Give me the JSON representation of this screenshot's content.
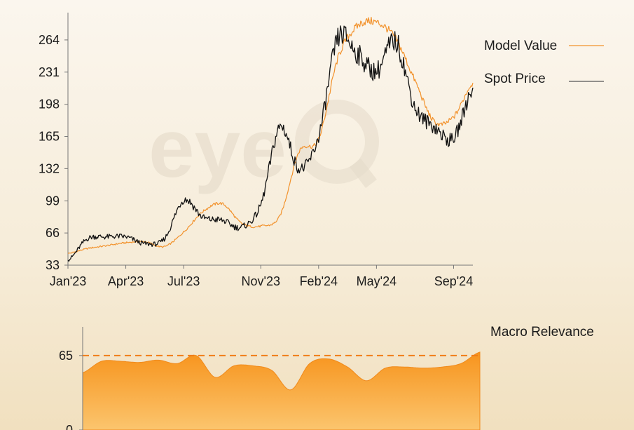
{
  "watermark": "eye",
  "colors": {
    "model": "#f2922c",
    "spot": "#111111",
    "macro_fill_top": "#f7941d",
    "macro_fill_bottom": "#fbc56e",
    "macro_ref": "#f07d18"
  },
  "chart_data": [
    {
      "type": "line",
      "title": "",
      "xlabel": "",
      "ylabel": "",
      "x_ticks": [
        "Jan'23",
        "Apr'23",
        "Jul'23",
        "Nov'23",
        "Feb'24",
        "May'24",
        "Sep'24"
      ],
      "y_ticks": [
        33,
        66,
        99,
        132,
        165,
        198,
        231,
        264
      ],
      "ylim": [
        33,
        292
      ],
      "xlim": [
        "2023-01",
        "2024-10"
      ],
      "legend_placement": "right",
      "series": [
        {
          "name": "Model Value",
          "color": "#f2922c",
          "x": [
            "2023-01",
            "2023-02",
            "2023-03",
            "2023-04",
            "2023-05",
            "2023-06",
            "2023-07",
            "2023-08",
            "2023-09",
            "2023-10",
            "2023-11",
            "2023-12",
            "2024-01",
            "2024-02",
            "2024-03",
            "2024-04",
            "2024-05",
            "2024-06",
            "2024-07",
            "2024-08",
            "2024-09",
            "2024-10"
          ],
          "values": [
            45,
            50,
            53,
            56,
            57,
            52,
            67,
            88,
            96,
            76,
            73,
            84,
            150,
            162,
            245,
            278,
            282,
            265,
            222,
            180,
            185,
            220
          ]
        },
        {
          "name": "Spot Price",
          "color": "#111111",
          "x": [
            "2023-01",
            "2023-02",
            "2023-03",
            "2023-04",
            "2023-05",
            "2023-06",
            "2023-07",
            "2023-08",
            "2023-09",
            "2023-10",
            "2023-11",
            "2023-12",
            "2024-01",
            "2024-02",
            "2024-03",
            "2024-04",
            "2024-05",
            "2024-06",
            "2024-07",
            "2024-08",
            "2024-09",
            "2024-10"
          ],
          "values": [
            38,
            60,
            62,
            62,
            55,
            60,
            100,
            82,
            79,
            72,
            95,
            175,
            132,
            165,
            265,
            250,
            232,
            262,
            195,
            175,
            163,
            215
          ]
        }
      ]
    },
    {
      "type": "area",
      "title": "",
      "legend": "Macro Relevance",
      "y_ticks": [
        0,
        65
      ],
      "ylim": [
        0,
        90
      ],
      "reference_line": 65,
      "series": [
        {
          "name": "Macro Relevance",
          "x": [
            "2023-01",
            "2023-02",
            "2023-03",
            "2023-04",
            "2023-05",
            "2023-06",
            "2023-07",
            "2023-08",
            "2023-09",
            "2023-10",
            "2023-11",
            "2023-12",
            "2024-01",
            "2024-02",
            "2024-03",
            "2024-04",
            "2024-05",
            "2024-06",
            "2024-07",
            "2024-08",
            "2024-09",
            "2024-10"
          ],
          "values": [
            50,
            60,
            60,
            59,
            61,
            58,
            65,
            46,
            56,
            56,
            52,
            35,
            58,
            62,
            55,
            43,
            54,
            55,
            54,
            55,
            58,
            68
          ]
        }
      ]
    }
  ]
}
